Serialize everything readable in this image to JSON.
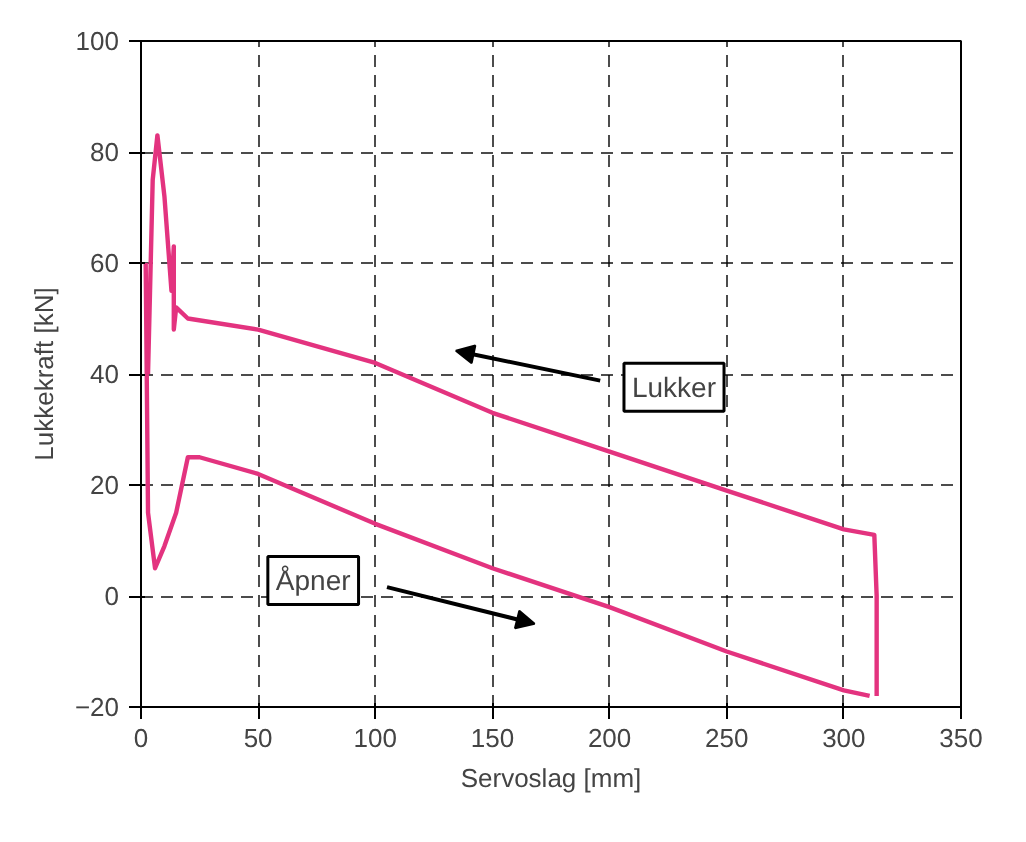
{
  "chart_data": {
    "type": "line",
    "xlabel": "Servoslag [mm]",
    "ylabel": "Lukkekraft [kN]",
    "xlim": [
      0,
      350
    ],
    "ylim": [
      -20,
      100
    ],
    "xticks": [
      0,
      50,
      100,
      150,
      200,
      250,
      300,
      350
    ],
    "yticks": [
      -20,
      0,
      20,
      40,
      60,
      80,
      100
    ],
    "grid": true,
    "line_style": "solid",
    "marker": "none",
    "series": [
      {
        "color": "#e3337f",
        "x": [
          3,
          5,
          7,
          10,
          13,
          14,
          14,
          15,
          20,
          50,
          100,
          150,
          200,
          250,
          300,
          313,
          314,
          314
        ],
        "values": [
          40,
          75,
          83,
          72,
          55,
          63,
          48,
          52,
          50,
          48,
          42,
          33,
          26,
          19,
          12,
          11,
          0,
          -18
        ]
      },
      {
        "color": "#e3337f",
        "x": [
          2,
          3,
          6,
          10,
          15,
          20,
          25,
          50,
          100,
          150,
          200,
          250,
          300,
          311
        ],
        "values": [
          60,
          15,
          5,
          9,
          15,
          25,
          25,
          22,
          13,
          5,
          -2,
          -10,
          -17,
          -18
        ]
      }
    ],
    "annotations": [
      "Lukker",
      "Åpner"
    ]
  }
}
